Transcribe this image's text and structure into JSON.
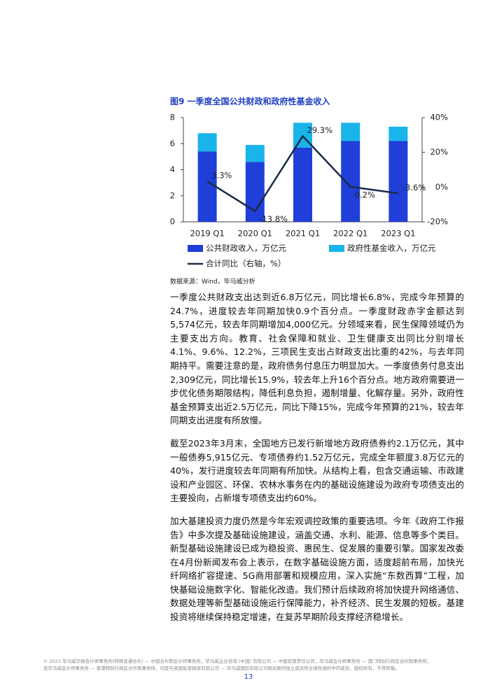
{
  "figure_title": "图9 一季度全国公共财政和政府性基金收入",
  "chart_data": {
    "type": "bar",
    "stacked": true,
    "categories": [
      "2019 Q1",
      "2020 Q1",
      "2021 Q1",
      "2022 Q1",
      "2023 Q1"
    ],
    "series": [
      {
        "name": "公共财政收入，万亿元",
        "color": "#1f3fd8",
        "values": [
          5.4,
          4.6,
          5.7,
          6.2,
          6.2
        ]
      },
      {
        "name": "政府性基金收入，万亿元",
        "color": "#18b4ea",
        "values": [
          1.4,
          1.3,
          1.9,
          1.4,
          1.1
        ]
      },
      {
        "name": "合计同比（右轴，%）",
        "color": "#1b2a4a",
        "type": "line",
        "axis": "y2",
        "values": [
          3.3,
          -13.8,
          29.3,
          0.2,
          -3.6
        ],
        "value_labels": [
          "3.3%",
          "-13.8%",
          "29.3%",
          "0.2%",
          "-3.6%"
        ]
      }
    ],
    "ylim": [
      0,
      8
    ],
    "yticks": [
      0,
      2,
      4,
      6,
      8
    ],
    "y2lim": [
      -20,
      40
    ],
    "y2ticks": [
      {
        "value": -20,
        "label": "-20%"
      },
      {
        "value": 0,
        "label": "0%"
      },
      {
        "value": 20,
        "label": "20%"
      },
      {
        "value": 40,
        "label": "40%"
      }
    ]
  },
  "source": "数据来源：Wind，毕马威分析",
  "paragraphs": [
    "一季度公共财政支出达到近6.8万亿元，同比增长6.8%，完成今年预算的24.7%，进度较去年同期加快0.9个百分点。一季度财政赤字金额达到5,574亿元，较去年同期增加4,000亿元。分领域来看，民生保障领域仍为主要支出方向。教育、社会保障和就业、卫生健康支出同比分别增长4.1%、9.6%、12.2%，三项民生支出占财政支出比重的42%，与去年同期持平。需要注意的是，政府债务付息压力明显加大。一季度债务付息支出2,309亿元，同比增长15.9%，较去年上升16个百分点。地方政府需要进一步优化债务期限结构，降低利息负担，遏制增量、化解存量。另外，政府性基金预算支出近2.5万亿元，同比下降15%，完成今年预算的21%，较去年同期支出进度有所放慢。",
    "截至2023年3月末，全国地方已发行新增地方政府债券约2.1万亿元，其中一般债券5,915亿元、专项债券约1.52万亿元，完成全年额度3.8万亿元的40%，发行进度较去年同期有所加快。从结构上看，包含交通运输、市政建设和产业园区、环保、农林水事务在内的基础设施建设为政府专项债支出的主要投向，占新增专项债支出约60%。",
    "加大基建投资力度仍然是今年宏观调控政策的重要选项。今年《政府工作报告》中多次提及基础设施建设，涵盖交通、水利、能源、信息等多个类目。新型基础设施建设已成为稳投资、惠民生、促发展的重要引擎。国家发改委在4月份新闻发布会上表示，在数字基础设施方面，适度超前布局，加快光纤网络扩容提速、5G商用部署和规模应用，深入实施“东数西算”工程，加快基础设施数字化、智能化改造。我们预计后续政府将加快提升网络通信、数据处理等新型基础设施运行保障能力，补齐经济、民生发展的短板。基建投资将继续保持稳定增速，在复苏早期阶段支撑经济稳增长。"
  ],
  "footer": [
    "© 2023 毕马威华振会计师事务所(特殊普通合伙) — 中国合伙制会计师事务所，毕马威企业咨询 (中国) 有限公司 — 中国有限责任公司，毕马威会计师事务所 — 澳门特别行政区合伙制事务所，",
    "及毕马威会计师事务所 — 香港特别行政区合伙制事务所，均是与英国私营担保有限公司 — 毕马威国际有限公司相关联的独立成员所全球性组织中的成员。版权所有，不得转载。"
  ],
  "page_number": "13"
}
